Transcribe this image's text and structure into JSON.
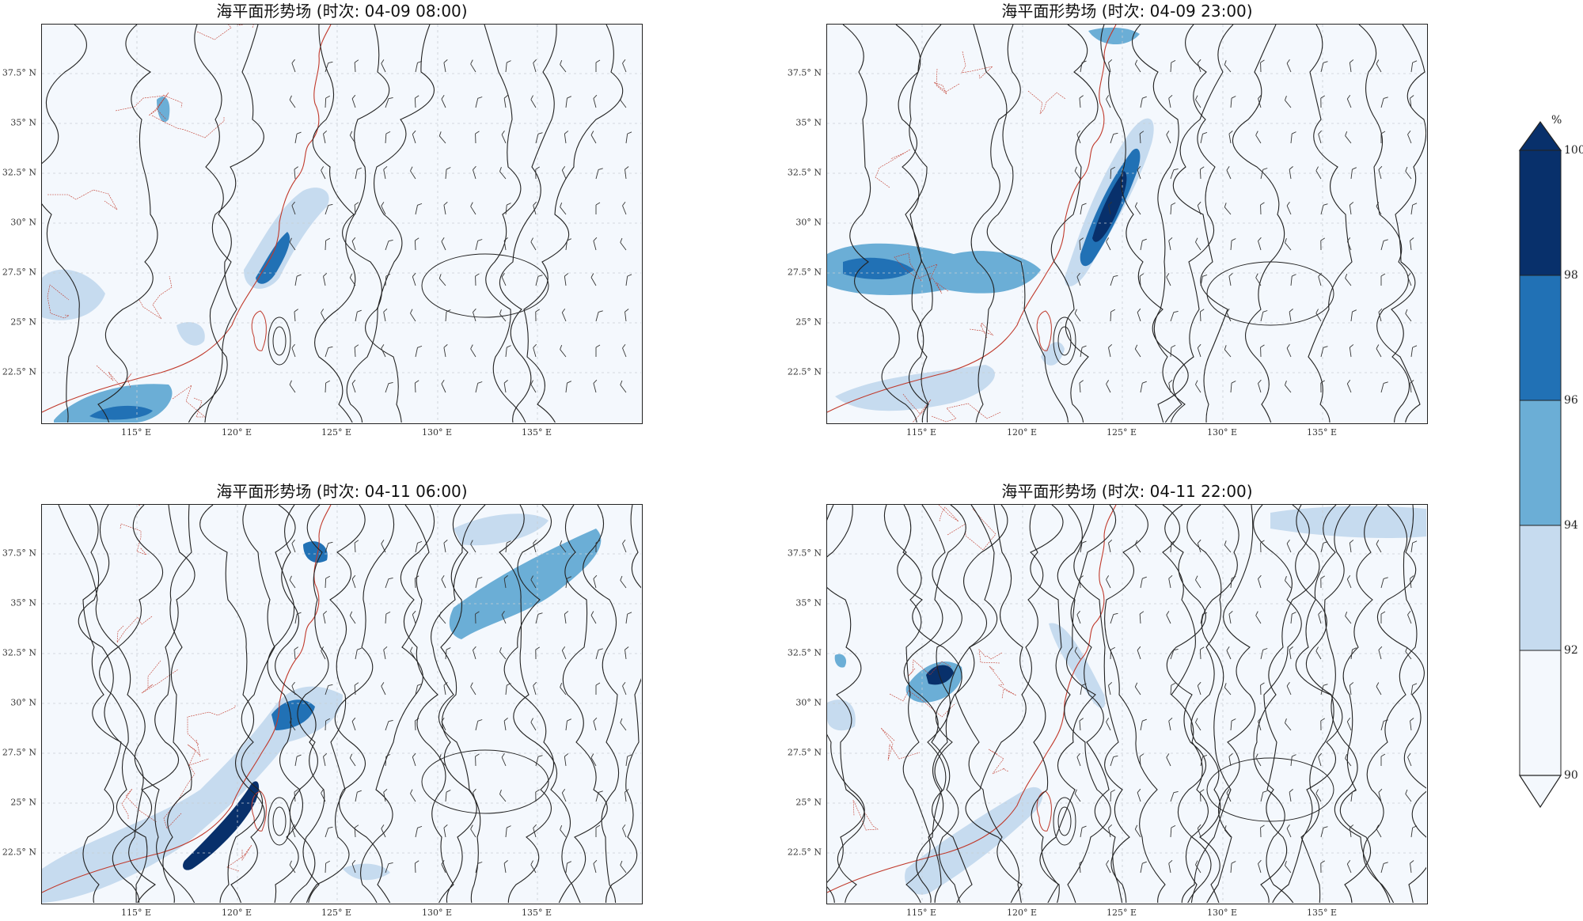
{
  "panels": [
    {
      "title": "海平面形势场 (时次: 04-09 08:00)"
    },
    {
      "title": "海平面形势场 (时次: 04-09 23:00)"
    },
    {
      "title": "海平面形势场 (时次: 04-11 06:00)"
    },
    {
      "title": "海平面形势场 (时次: 04-11 22:00)"
    }
  ],
  "lat_ticks": [
    "37.5° N",
    "35° N",
    "32.5° N",
    "30° N",
    "27.5° N",
    "25° N",
    "22.5° N"
  ],
  "lon_ticks": [
    "115° E",
    "120° E",
    "125° E",
    "130° E",
    "135° E"
  ],
  "colorbar": {
    "unit": "%",
    "ticks": [
      "100",
      "98",
      "96",
      "94",
      "92",
      "90"
    ],
    "colors": [
      "#08306b",
      "#2171b5",
      "#6baed6",
      "#c6dbef",
      "#f4f8fd"
    ]
  },
  "colors": {
    "coast": "#c0392b",
    "isobar": "#222222",
    "fill_light": "#c6dbef",
    "fill_mid": "#6baed6",
    "fill_dark": "#2171b5",
    "fill_darkest": "#08306b"
  }
}
